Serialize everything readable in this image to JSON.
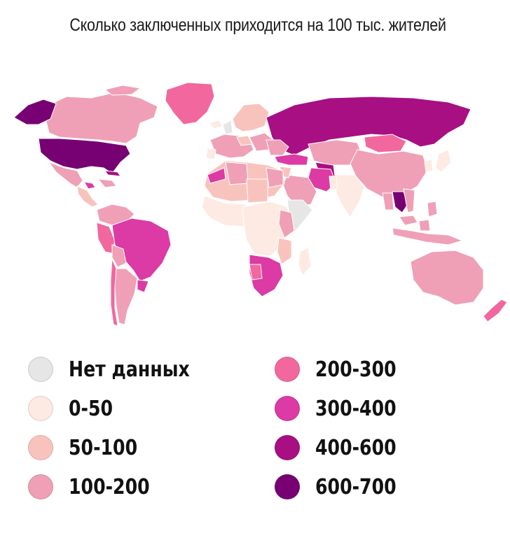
{
  "title": "Сколько заключенных приходится на 100 тыс. жителей",
  "colors": {
    "background": "#f3f2f2",
    "no_data": "#e6e6e6",
    "c0_50": "#fdeae2",
    "c50_100": "#f9c3bd",
    "c100_200": "#efa0b6",
    "c200_300": "#f2689e",
    "c300_400": "#dc3aa4",
    "c400_600": "#a70f82",
    "c600_700": "#770073"
  },
  "legend": [
    {
      "label": "Нет данных",
      "color": "#e6e6e6"
    },
    {
      "label": "0-50",
      "color": "#fdeae2"
    },
    {
      "label": "50-100",
      "color": "#f9c3bd"
    },
    {
      "label": "100-200",
      "color": "#efa0b6"
    },
    {
      "label": "200-300",
      "color": "#f2689e"
    },
    {
      "label": "300-400",
      "color": "#dc3aa4"
    },
    {
      "label": "400-600",
      "color": "#a70f82"
    },
    {
      "label": "600-700",
      "color": "#770073"
    }
  ]
}
